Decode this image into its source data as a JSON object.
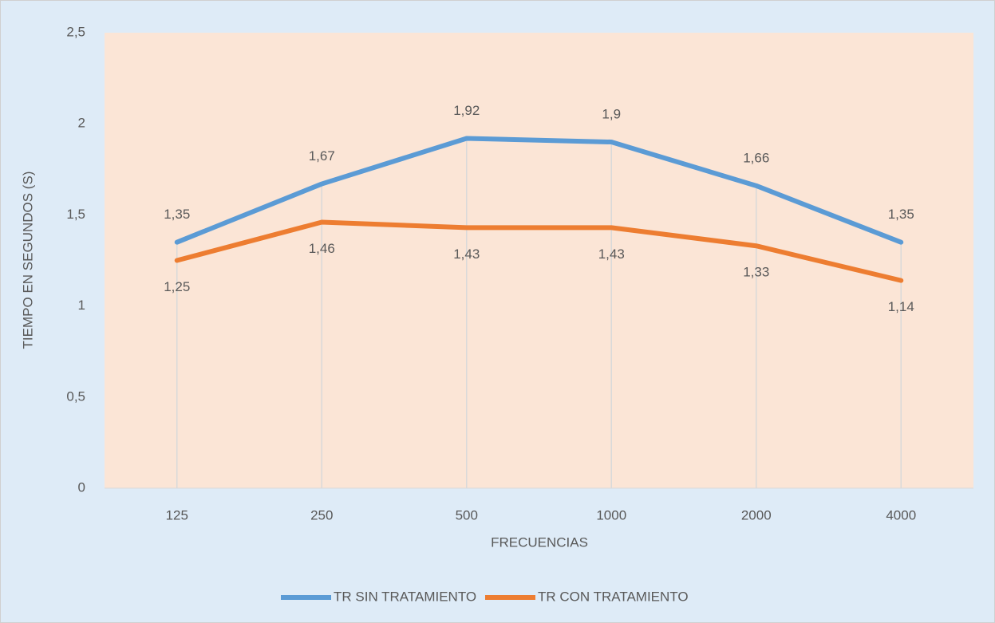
{
  "chart_data": {
    "type": "line",
    "categories": [
      "125",
      "250",
      "500",
      "1000",
      "2000",
      "4000"
    ],
    "x_axis_label": "FRECUENCIAS",
    "y_axis_label": "TIEMPO EN SEGUNDOS (S)",
    "ylim": [
      0,
      2.5
    ],
    "yticks": [
      0,
      {
        "value": 0.5,
        "label": "0,5"
      },
      1,
      {
        "value": 1.5,
        "label": "1,5"
      },
      2,
      {
        "value": 2.5,
        "label": "2,5"
      }
    ],
    "drop_lines": true,
    "legend": "bottom",
    "series": [
      {
        "name": "TR SIN TRATAMIENTO",
        "color": "#5b9bd5",
        "values": [
          1.35,
          1.67,
          1.92,
          1.9,
          1.66,
          1.35
        ],
        "value_labels": [
          "1,35",
          "1,67",
          "1,92",
          "1,9",
          "1,66",
          "1,35"
        ],
        "label_position": "above"
      },
      {
        "name": "TR CON TRATAMIENTO",
        "color": "#ed7d31",
        "values": [
          1.25,
          1.46,
          1.43,
          1.43,
          1.33,
          1.14
        ],
        "value_labels": [
          "1,25",
          "1,46",
          "1,43",
          "1,43",
          "1,33",
          "1,14"
        ],
        "label_position": "below"
      }
    ]
  }
}
